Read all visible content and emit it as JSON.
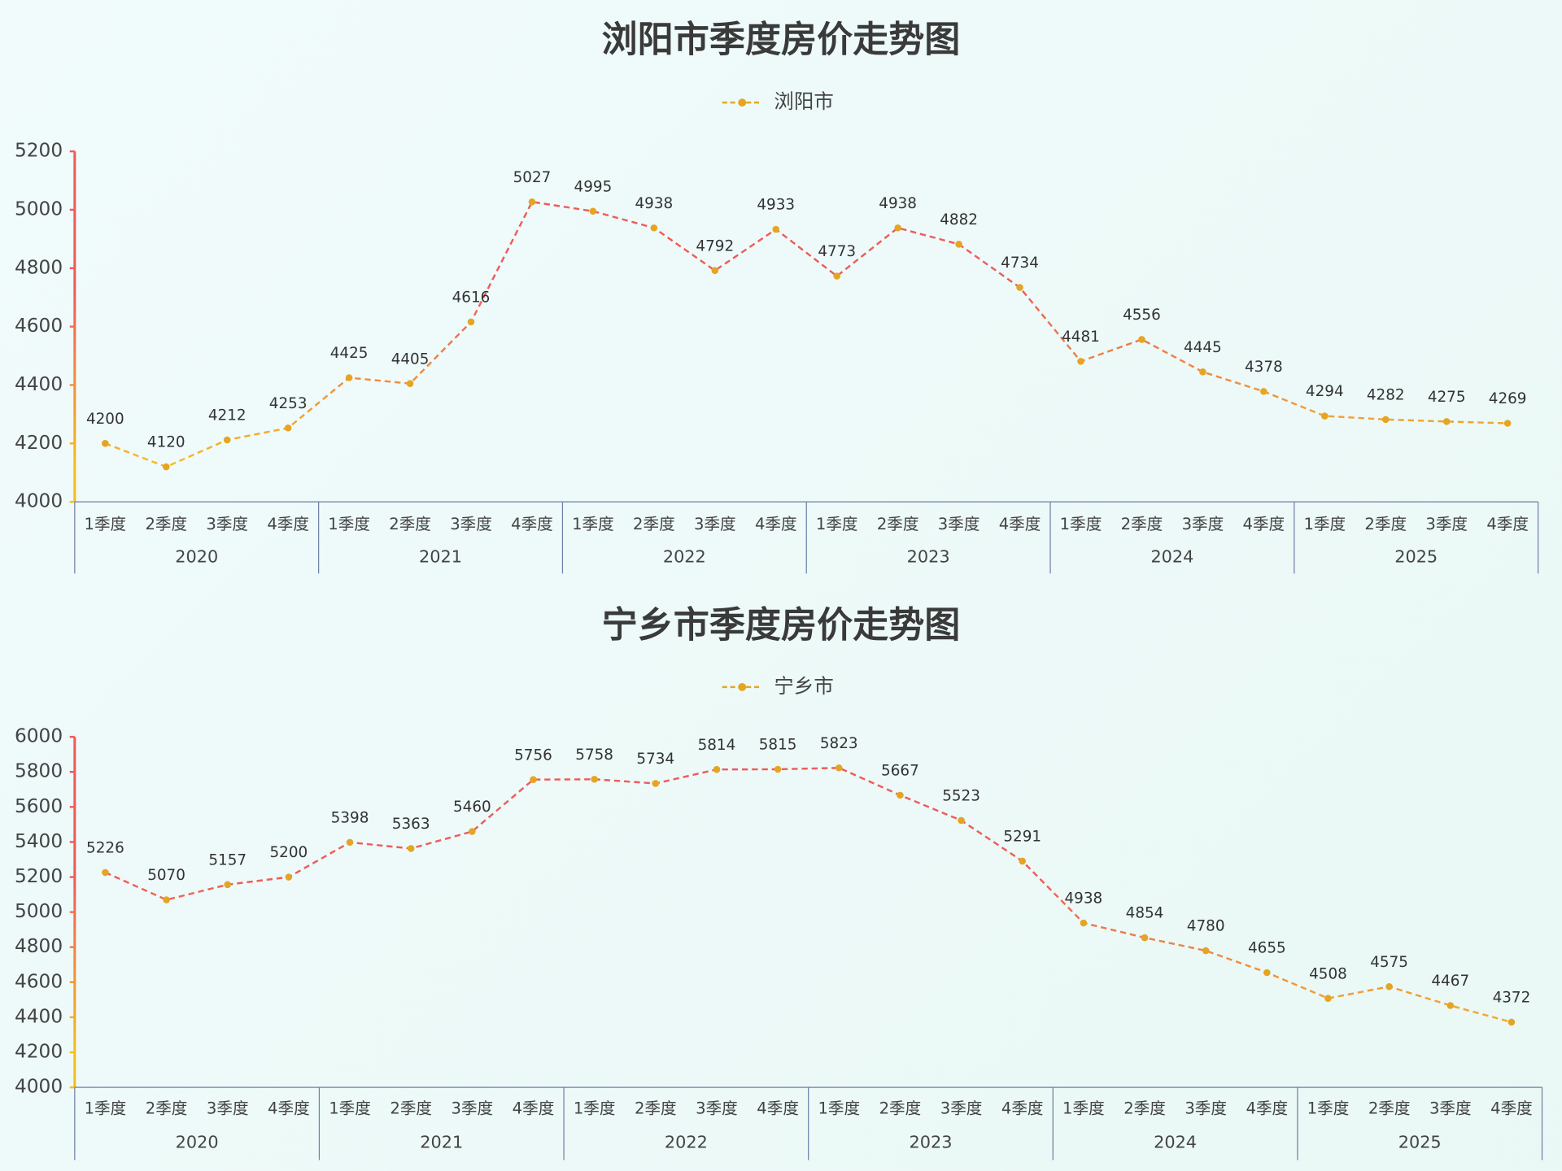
{
  "chart_data": [
    {
      "type": "line",
      "title": "浏阳市季度房价走势图",
      "categories": [
        "1季度",
        "2季度",
        "3季度",
        "4季度",
        "1季度",
        "2季度",
        "3季度",
        "4季度",
        "1季度",
        "2季度",
        "3季度",
        "4季度",
        "1季度",
        "2季度",
        "3季度",
        "4季度",
        "1季度",
        "2季度",
        "3季度",
        "4季度",
        "1季度",
        "2季度",
        "3季度",
        "4季度"
      ],
      "years": [
        "2020",
        "2021",
        "2022",
        "2023",
        "2024",
        "2025"
      ],
      "series": [
        {
          "name": "浏阳市",
          "color": "#e5a523",
          "values": [
            4200,
            4120,
            4212,
            4253,
            4425,
            4405,
            4616,
            5027,
            4995,
            4938,
            4792,
            4933,
            4773,
            4938,
            4882,
            4734,
            4481,
            4556,
            4445,
            4378,
            4294,
            4282,
            4275,
            4269
          ]
        }
      ],
      "ylim": [
        4000,
        5200
      ],
      "yticks": [
        4000,
        4200,
        4400,
        4600,
        4800,
        5000,
        5200
      ],
      "line_gradient": [
        "#f5bd1f",
        "#ee5c5b"
      ],
      "legend": "top"
    },
    {
      "type": "line",
      "title": "宁乡市季度房价走势图",
      "categories": [
        "1季度",
        "2季度",
        "3季度",
        "4季度",
        "1季度",
        "2季度",
        "3季度",
        "4季度",
        "1季度",
        "2季度",
        "3季度",
        "4季度",
        "1季度",
        "2季度",
        "3季度",
        "4季度",
        "1季度",
        "2季度",
        "3季度",
        "4季度",
        "1季度",
        "2季度",
        "3季度",
        "4季度"
      ],
      "years": [
        "2020",
        "2021",
        "2022",
        "2023",
        "2024",
        "2025"
      ],
      "series": [
        {
          "name": "宁乡市",
          "color": "#e5a523",
          "values": [
            5226,
            5070,
            5157,
            5200,
            5398,
            5363,
            5460,
            5756,
            5758,
            5734,
            5814,
            5815,
            5823,
            5667,
            5523,
            5291,
            4938,
            4854,
            4780,
            4655,
            4508,
            4575,
            4467,
            4372
          ]
        }
      ],
      "ylim": [
        4000,
        6000
      ],
      "yticks": [
        4000,
        4200,
        4400,
        4600,
        4800,
        5000,
        5200,
        5400,
        5600,
        5800,
        6000
      ],
      "line_gradient": [
        "#f5bd1f",
        "#ee5c5b"
      ],
      "legend": "top"
    }
  ]
}
